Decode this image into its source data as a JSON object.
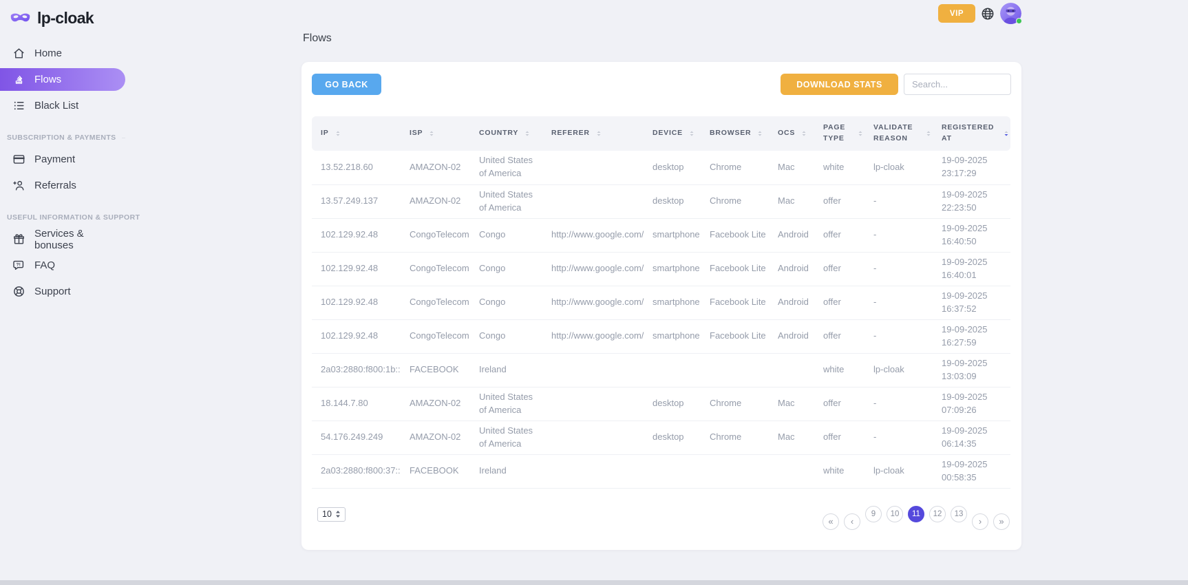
{
  "app": {
    "logo": "lp-cloak"
  },
  "topbar": {
    "vip": "VIP"
  },
  "sidebar": {
    "sections": [
      {
        "label": "",
        "items": [
          {
            "label": "Home",
            "icon": "home-icon",
            "active": false
          },
          {
            "label": "Flows",
            "icon": "flows-icon",
            "active": true
          },
          {
            "label": "Black List",
            "icon": "black-list-icon",
            "active": false
          }
        ]
      },
      {
        "label": "SUBSCRIPTION & PAYMENTS",
        "items": [
          {
            "label": "Payment",
            "icon": "payment-icon",
            "active": false
          },
          {
            "label": "Referrals",
            "icon": "referrals-icon",
            "active": false
          }
        ]
      },
      {
        "label": "USEFUL INFORMATION & SUPPORT",
        "items": [
          {
            "label": "Services & bonuses",
            "icon": "gift-icon",
            "active": false
          },
          {
            "label": "FAQ",
            "icon": "faq-icon",
            "active": false
          },
          {
            "label": "Support",
            "icon": "support-icon",
            "active": false
          }
        ]
      }
    ]
  },
  "main": {
    "title": "Flows",
    "toolbar": {
      "go_back": "GO BACK",
      "download_stats": "DOWNLOAD STATS",
      "search_placeholder": "Search..."
    },
    "table": {
      "columns": [
        {
          "label": "IP",
          "sort_active": false
        },
        {
          "label": "ISP",
          "sort_active": false
        },
        {
          "label": "COUNTRY",
          "sort_active": false
        },
        {
          "label": "REFERER",
          "sort_active": false
        },
        {
          "label": "DEVICE",
          "sort_active": false
        },
        {
          "label": "BROWSER",
          "sort_active": false
        },
        {
          "label": "OCS",
          "sort_active": false
        },
        {
          "label": "PAGE TYPE",
          "sort_active": false
        },
        {
          "label": "VALIDATE REASON",
          "sort_active": false
        },
        {
          "label": "REGISTERED AT",
          "sort_active": true
        }
      ],
      "fields": [
        "ip",
        "isp",
        "country",
        "referer",
        "device",
        "browser",
        "ocs",
        "page_type",
        "validate_reason",
        "registered_at"
      ],
      "rows": [
        {
          "ip": "13.52.218.60",
          "isp": "AMAZON-02",
          "country": "United States of America",
          "referer": "",
          "device": "desktop",
          "browser": "Chrome",
          "ocs": "Mac",
          "page_type": "white",
          "validate_reason": "lp-cloak",
          "registered_at": "19-09-2025 23:17:29"
        },
        {
          "ip": "13.57.249.137",
          "isp": "AMAZON-02",
          "country": "United States of America",
          "referer": "",
          "device": "desktop",
          "browser": "Chrome",
          "ocs": "Mac",
          "page_type": "offer",
          "validate_reason": "-",
          "registered_at": "19-09-2025 22:23:50"
        },
        {
          "ip": "102.129.92.48",
          "isp": "CongoTelecom",
          "country": "Congo",
          "referer": "http://www.google.com/",
          "device": "smartphone",
          "browser": "Facebook Lite",
          "ocs": "Android",
          "page_type": "offer",
          "validate_reason": "-",
          "registered_at": "19-09-2025 16:40:50"
        },
        {
          "ip": "102.129.92.48",
          "isp": "CongoTelecom",
          "country": "Congo",
          "referer": "http://www.google.com/",
          "device": "smartphone",
          "browser": "Facebook Lite",
          "ocs": "Android",
          "page_type": "offer",
          "validate_reason": "-",
          "registered_at": "19-09-2025 16:40:01"
        },
        {
          "ip": "102.129.92.48",
          "isp": "CongoTelecom",
          "country": "Congo",
          "referer": "http://www.google.com/",
          "device": "smartphone",
          "browser": "Facebook Lite",
          "ocs": "Android",
          "page_type": "offer",
          "validate_reason": "-",
          "registered_at": "19-09-2025 16:37:52"
        },
        {
          "ip": "102.129.92.48",
          "isp": "CongoTelecom",
          "country": "Congo",
          "referer": "http://www.google.com/",
          "device": "smartphone",
          "browser": "Facebook Lite",
          "ocs": "Android",
          "page_type": "offer",
          "validate_reason": "-",
          "registered_at": "19-09-2025 16:27:59"
        },
        {
          "ip": "2a03:2880:f800:1b::",
          "isp": "FACEBOOK",
          "country": "Ireland",
          "referer": "",
          "device": "",
          "browser": "",
          "ocs": "",
          "page_type": "white",
          "validate_reason": "lp-cloak",
          "registered_at": "19-09-2025 13:03:09"
        },
        {
          "ip": "18.144.7.80",
          "isp": "AMAZON-02",
          "country": "United States of America",
          "referer": "",
          "device": "desktop",
          "browser": "Chrome",
          "ocs": "Mac",
          "page_type": "offer",
          "validate_reason": "-",
          "registered_at": "19-09-2025 07:09:26"
        },
        {
          "ip": "54.176.249.249",
          "isp": "AMAZON-02",
          "country": "United States of America",
          "referer": "",
          "device": "desktop",
          "browser": "Chrome",
          "ocs": "Mac",
          "page_type": "offer",
          "validate_reason": "-",
          "registered_at": "19-09-2025 06:14:35"
        },
        {
          "ip": "2a03:2880:f800:37::",
          "isp": "FACEBOOK",
          "country": "Ireland",
          "referer": "",
          "device": "",
          "browser": "",
          "ocs": "",
          "page_type": "white",
          "validate_reason": "lp-cloak",
          "registered_at": "19-09-2025 00:58:35"
        }
      ]
    },
    "pagination": {
      "page_size": "10",
      "nav_first": "«",
      "nav_prev": "‹",
      "nav_next": "›",
      "nav_last": "»",
      "pages": [
        "9",
        "10",
        "11",
        "12",
        "13"
      ],
      "active_page": "11"
    }
  },
  "colors": {
    "accent_gradient_start": "#8055e6",
    "accent_gradient_end": "#ab8ff4",
    "orange": "#f0b040",
    "blue": "#58a8ee",
    "pagination_active": "#5549dc",
    "online_green": "#3dc553",
    "page_bg": "#f0f1f6"
  }
}
